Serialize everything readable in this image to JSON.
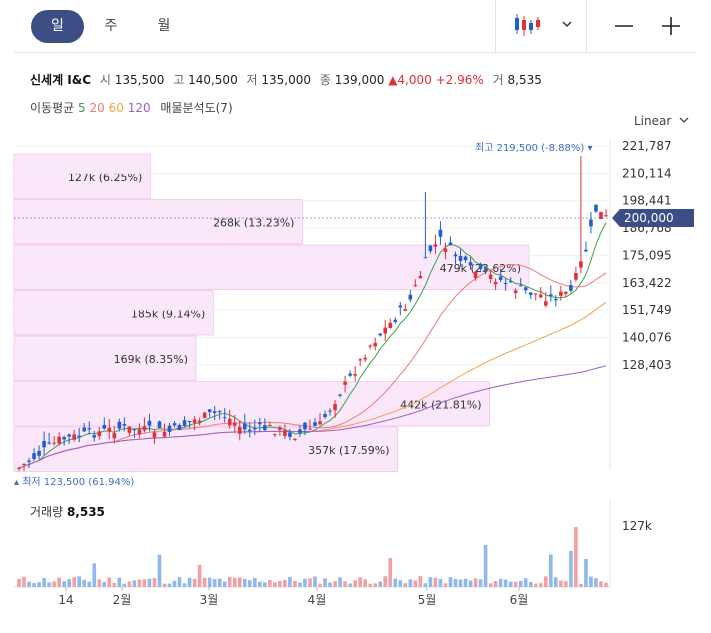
{
  "tabs": [
    {
      "label": "일",
      "active": true
    },
    {
      "label": "주",
      "active": false
    },
    {
      "label": "월",
      "active": false
    }
  ],
  "icons": {
    "chart_type": "candlestick-icon",
    "dropdown": "chevron-down-icon",
    "zoom_out": "minus-icon",
    "zoom_in": "plus-icon"
  },
  "quote": {
    "name": "신세계 I&C",
    "open_label": "시",
    "open": "135,500",
    "high_label": "고",
    "high": "140,500",
    "low_label": "저",
    "low": "135,000",
    "close_label": "종",
    "close": "139,000",
    "change": "4,000",
    "change_pct": "+2.96%",
    "volume_label": "거",
    "volume": "8,535"
  },
  "ma": {
    "label": "이동평균",
    "p5": "5",
    "p20": "20",
    "p60": "60",
    "p120": "120",
    "profile_label": "매물분석도(7)"
  },
  "scale_mode": "Linear",
  "colors": {
    "up": "#e0313b",
    "down": "#1f5fcf",
    "ma5": "#3aa34a",
    "ma20": "#f07a7a",
    "ma60": "#f3a24b",
    "ma120": "#9a5fd0",
    "profile": "#fae8fa",
    "accent": "#3b4f86"
  },
  "chart_data": {
    "type": "candlestick",
    "y_ticks": [
      "221,787",
      "210,114",
      "198,441",
      "186,768",
      "175,095",
      "163,422",
      "151,749",
      "140,076",
      "128,403"
    ],
    "ylim": [
      124000,
      224000
    ],
    "x_ticks": [
      "14",
      "2월",
      "3월",
      "4월",
      "5월",
      "6월"
    ],
    "current_price": "200,000",
    "max_label": "최고 219,500 (-8.88%)",
    "min_label": "최저 123,500 (61.94%)",
    "volume_profile": [
      {
        "label": "127k (6.25%)",
        "pct": 6.25
      },
      {
        "label": "268k (13.23%)",
        "pct": 13.23
      },
      {
        "label": "479k (23.62%)",
        "pct": 23.62
      },
      {
        "label": "185k (9.14%)",
        "pct": 9.14
      },
      {
        "label": "169k (8.35%)",
        "pct": 8.35
      },
      {
        "label": "442k (21.81%)",
        "pct": 21.81
      },
      {
        "label": "357k (17.59%)",
        "pct": 17.59
      }
    ],
    "volume_axis_label": "127k",
    "volume_title": "거래량",
    "volume_value": "8,535"
  }
}
